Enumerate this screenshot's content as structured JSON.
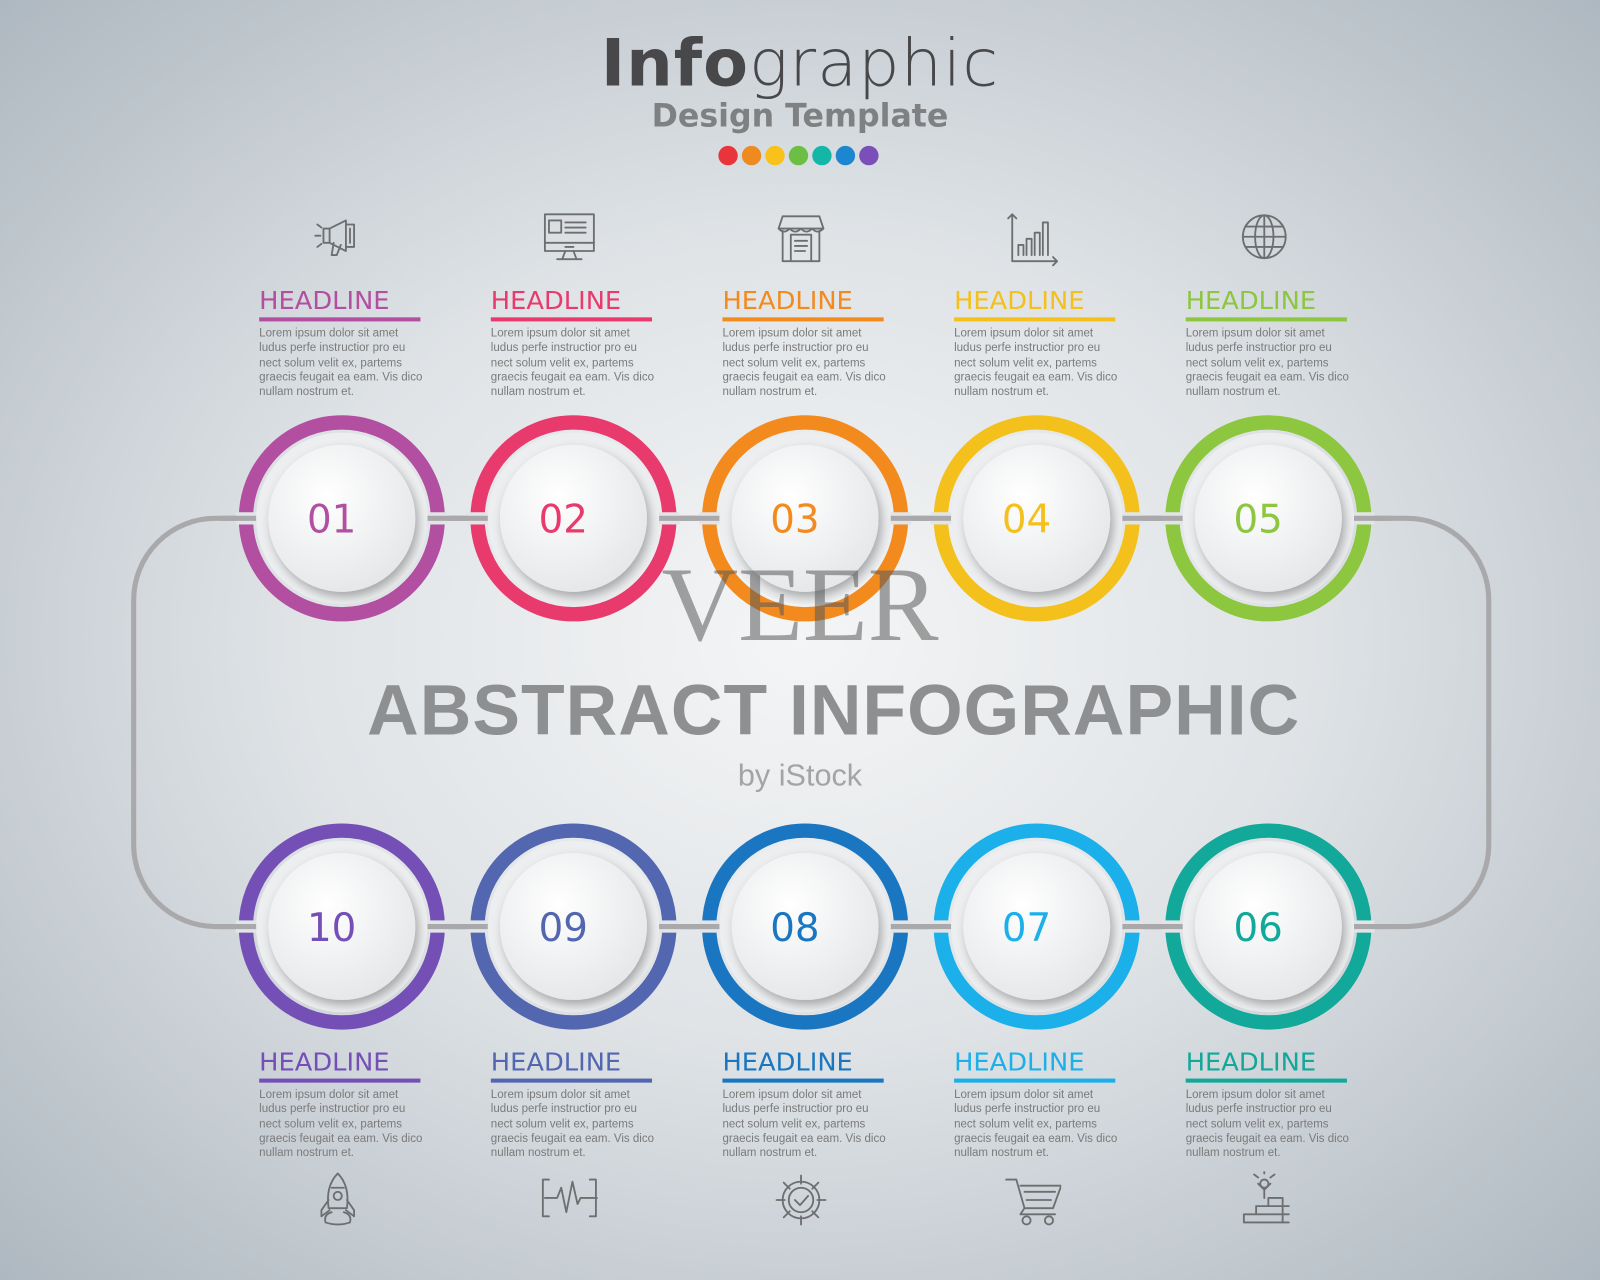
{
  "header": {
    "title_bold": "Info",
    "title_light": "graphic",
    "subtitle": "Design Template",
    "palette": [
      "#e8343a",
      "#ee8a1f",
      "#f8c21a",
      "#6cbf44",
      "#14b6a8",
      "#1c86d0",
      "#7a4fb9"
    ]
  },
  "center_text": "ABSTRACT INFOGRAPHIC",
  "watermark": {
    "main": "VEER",
    "sub": "by iStock"
  },
  "steps": [
    {
      "number": "01",
      "headline": "HEADLINE",
      "color": "#b24fa0",
      "icon": "megaphone-icon",
      "row": "top",
      "body": [
        "Lorem ipsum dolor sit amet",
        "ludus perfe instructior pro eu",
        "nect solum velit ex, partems",
        "graecis feugait ea eam. Vis dico",
        "nullam nostrum et."
      ]
    },
    {
      "number": "02",
      "headline": "HEADLINE",
      "color": "#e83a6c",
      "icon": "monitor-icon",
      "row": "top",
      "body": [
        "Lorem ipsum dolor sit amet",
        "ludus perfe instructior pro eu",
        "nect solum velit ex, partems",
        "graecis feugait ea eam. Vis dico",
        "nullam nostrum et."
      ]
    },
    {
      "number": "03",
      "headline": "HEADLINE",
      "color": "#f28a1e",
      "icon": "shop-icon",
      "row": "top",
      "body": [
        "Lorem ipsum dolor sit amet",
        "ludus perfe instructior pro eu",
        "nect solum velit ex, partems",
        "graecis feugait ea eam. Vis dico",
        "nullam nostrum et."
      ]
    },
    {
      "number": "04",
      "headline": "HEADLINE",
      "color": "#f4c01b",
      "icon": "bar-chart-icon",
      "row": "top",
      "body": [
        "Lorem ipsum dolor sit amet",
        "ludus perfe instructior pro eu",
        "nect solum velit ex, partems",
        "graecis feugait ea eam. Vis dico",
        "nullam nostrum et."
      ]
    },
    {
      "number": "05",
      "headline": "HEADLINE",
      "color": "#8dc63f",
      "icon": "globe-icon",
      "row": "top",
      "body": [
        "Lorem ipsum dolor sit amet",
        "ludus perfe instructior pro eu",
        "nect solum velit ex, partems",
        "graecis feugait ea eam. Vis dico",
        "nullam nostrum et."
      ]
    },
    {
      "number": "06",
      "headline": "HEADLINE",
      "color": "#12a89a",
      "icon": "success-stairs-icon",
      "row": "bottom",
      "body": [
        "Lorem ipsum dolor sit amet",
        "ludus perfe instructior pro eu",
        "nect solum velit ex, partems",
        "graecis feugait ea eam. Vis dico",
        "nullam nostrum et."
      ]
    },
    {
      "number": "07",
      "headline": "HEADLINE",
      "color": "#1bb0ea",
      "icon": "cart-icon",
      "row": "bottom",
      "body": [
        "Lorem ipsum dolor sit amet",
        "ludus perfe instructior pro eu",
        "nect solum velit ex, partems",
        "graecis feugait ea eam. Vis dico",
        "nullam nostrum et."
      ]
    },
    {
      "number": "08",
      "headline": "HEADLINE",
      "color": "#1a76c0",
      "icon": "gear-icon",
      "row": "bottom",
      "body": [
        "Lorem ipsum dolor sit amet",
        "ludus perfe instructior pro eu",
        "nect solum velit ex, partems",
        "graecis feugait ea eam. Vis dico",
        "nullam nostrum et."
      ]
    },
    {
      "number": "09",
      "headline": "HEADLINE",
      "color": "#5366b0",
      "icon": "pulse-icon",
      "row": "bottom",
      "body": [
        "Lorem ipsum dolor sit amet",
        "ludus perfe instructior pro eu",
        "nect solum velit ex, partems",
        "graecis feugait ea eam. Vis dico",
        "nullam nostrum et."
      ]
    },
    {
      "number": "10",
      "headline": "HEADLINE",
      "color": "#7450b6",
      "icon": "rocket-icon",
      "row": "bottom",
      "body": [
        "Lorem ipsum dolor sit amet",
        "ludus perfe instructior pro eu",
        "nect solum velit ex, partems",
        "graecis feugait ea eam. Vis dico",
        "nullam nostrum et."
      ]
    }
  ]
}
